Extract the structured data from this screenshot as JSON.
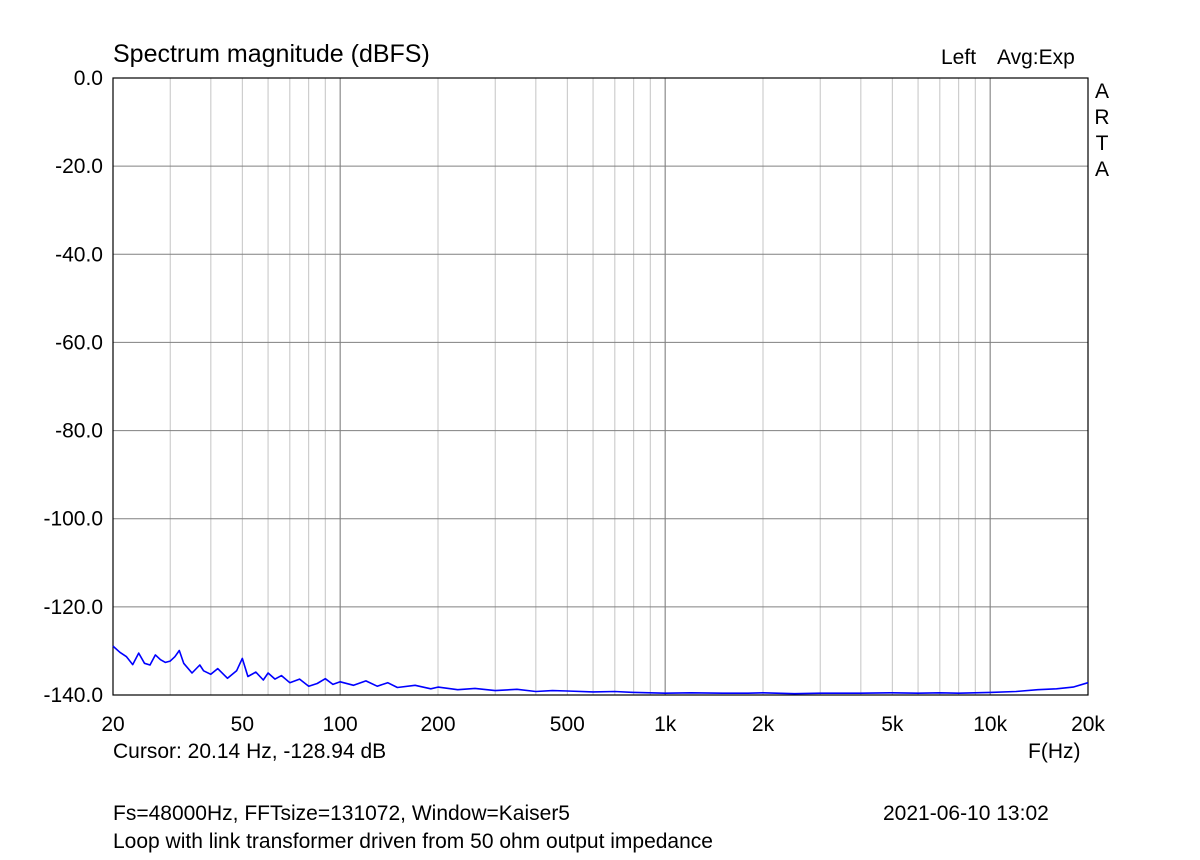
{
  "chart_data": {
    "type": "line",
    "title": "Spectrum magnitude (dBFS)",
    "channel": "Left",
    "averaging": "Avg:Exp",
    "brand": "ARTA",
    "xlabel": "F(Hz)",
    "xscale": "log",
    "xlim": [
      20,
      20000
    ],
    "ylim": [
      -140,
      0
    ],
    "x_ticks": [
      {
        "value": 20,
        "label": "20"
      },
      {
        "value": 50,
        "label": "50"
      },
      {
        "value": 100,
        "label": "100"
      },
      {
        "value": 200,
        "label": "200"
      },
      {
        "value": 500,
        "label": "500"
      },
      {
        "value": 1000,
        "label": "1k"
      },
      {
        "value": 2000,
        "label": "2k"
      },
      {
        "value": 5000,
        "label": "5k"
      },
      {
        "value": 10000,
        "label": "10k"
      },
      {
        "value": 20000,
        "label": "20k"
      }
    ],
    "y_ticks": [
      {
        "value": 0,
        "label": "0.0"
      },
      {
        "value": -20,
        "label": "-20.0"
      },
      {
        "value": -40,
        "label": "-40.0"
      },
      {
        "value": -60,
        "label": "-60.0"
      },
      {
        "value": -80,
        "label": "-80.0"
      },
      {
        "value": -100,
        "label": "-100.0"
      },
      {
        "value": -120,
        "label": "-120.0"
      },
      {
        "value": -140,
        "label": "-140.0"
      }
    ],
    "grid": true,
    "series": [
      {
        "color": "#0000ff",
        "x": [
          20,
          21,
          22,
          23,
          24,
          25,
          26,
          27,
          28,
          29,
          30,
          31,
          32,
          33,
          35,
          37,
          38,
          40,
          42,
          45,
          48,
          50,
          52,
          55,
          58,
          60,
          63,
          66,
          70,
          75,
          80,
          85,
          90,
          95,
          100,
          110,
          120,
          130,
          140,
          150,
          170,
          190,
          200,
          230,
          260,
          300,
          350,
          400,
          450,
          500,
          600,
          700,
          800,
          900,
          1000,
          1200,
          1500,
          1800,
          2000,
          2500,
          3000,
          4000,
          5000,
          6000,
          7000,
          8000,
          10000,
          12000,
          14000,
          16000,
          18000,
          20000
        ],
        "y": [
          -128.9,
          -130.3,
          -131.3,
          -133.1,
          -130.5,
          -132.8,
          -133.2,
          -130.9,
          -132.0,
          -132.6,
          -132.3,
          -131.3,
          -129.9,
          -132.8,
          -135.0,
          -133.2,
          -134.5,
          -135.3,
          -134.0,
          -136.2,
          -134.5,
          -131.7,
          -135.8,
          -134.8,
          -136.6,
          -135.0,
          -136.4,
          -135.6,
          -137.2,
          -136.4,
          -138.0,
          -137.4,
          -136.3,
          -137.6,
          -137.0,
          -137.8,
          -136.8,
          -138.0,
          -137.2,
          -138.3,
          -137.8,
          -138.6,
          -138.2,
          -138.8,
          -138.5,
          -139.0,
          -138.7,
          -139.2,
          -139.0,
          -139.1,
          -139.3,
          -139.2,
          -139.4,
          -139.5,
          -139.6,
          -139.5,
          -139.6,
          -139.6,
          -139.5,
          -139.7,
          -139.6,
          -139.6,
          -139.5,
          -139.6,
          -139.5,
          -139.6,
          -139.4,
          -139.2,
          -138.8,
          -138.6,
          -138.2,
          -137.2
        ]
      }
    ]
  },
  "footer": {
    "cursor": "Cursor: 20.14 Hz, -128.94 dB",
    "params": "Fs=48000Hz, FFTsize=131072, Window=Kaiser5",
    "timestamp": "2021-06-10  13:02",
    "caption": "Loop with link transformer driven from 50 ohm output impedance"
  }
}
